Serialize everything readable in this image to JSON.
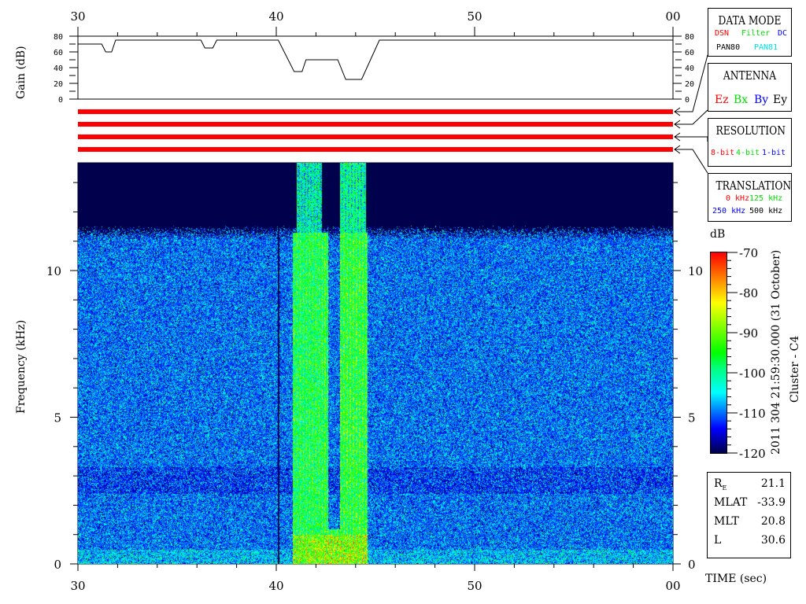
{
  "time_axis": {
    "ticks": [
      "30",
      "40",
      "50",
      "00"
    ],
    "tick_values": [
      30,
      40,
      50,
      60
    ],
    "label": "TIME (sec)"
  },
  "gain": {
    "ylabel": "Gain (dB)",
    "yticks": [
      "0",
      "20",
      "40",
      "60",
      "80"
    ],
    "x": [
      30,
      31.2,
      31.4,
      31.7,
      31.9,
      36.2,
      36.4,
      36.8,
      37.0,
      40.1,
      40.9,
      41.3,
      41.5,
      43.1,
      43.5,
      44.3,
      45.2,
      60
    ],
    "y": [
      70,
      70,
      60,
      60,
      75,
      75,
      65,
      65,
      75,
      75,
      35,
      35,
      50,
      50,
      25,
      25,
      75,
      75
    ]
  },
  "status_bar_color": "#ff0000",
  "panels": {
    "data_mode": {
      "title": "DATA MODE",
      "items": [
        {
          "t": "DSN",
          "c": "#ff0000"
        },
        {
          "t": "Filter",
          "c": "#00dd00"
        },
        {
          "t": "DC",
          "c": "#0000ff"
        },
        {
          "t": "PAN80",
          "c": "#000000"
        },
        {
          "t": "PAN81",
          "c": "#00e0e0"
        }
      ]
    },
    "antenna": {
      "title": "ANTENNA",
      "items": [
        {
          "t": "Ez",
          "c": "#ff0000"
        },
        {
          "t": "Bx",
          "c": "#00dd00"
        },
        {
          "t": "By",
          "c": "#0000ff"
        },
        {
          "t": "Ey",
          "c": "#000000"
        }
      ]
    },
    "resolution": {
      "title": "RESOLUTION",
      "items": [
        {
          "t": "8-bit",
          "c": "#ff0000"
        },
        {
          "t": "4-bit",
          "c": "#00dd00"
        },
        {
          "t": "1-bit",
          "c": "#0000ff"
        }
      ]
    },
    "translation": {
      "title": "TRANSLATION",
      "items": [
        {
          "t": "0 kHz",
          "c": "#ff0000"
        },
        {
          "t": "125 kHz",
          "c": "#00dd00"
        },
        {
          "t": "250 kHz",
          "c": "#0000ff"
        },
        {
          "t": "500 kHz",
          "c": "#000000"
        }
      ]
    }
  },
  "chart_data": {
    "type": "heatmap",
    "xlabel": "TIME (sec)",
    "ylabel": "Frequency (kHz)",
    "xlim": [
      30,
      60
    ],
    "ylim": [
      0,
      13.7
    ],
    "yticks": [
      "0",
      "5",
      "10"
    ],
    "colorbar": {
      "label": "dB",
      "range": [
        -120,
        -70
      ],
      "ticks": [
        "-70",
        "-80",
        "-90",
        "-100",
        "-110",
        "-120"
      ]
    },
    "noise_cutoff_khz": 11.3,
    "burst_interval_sec": [
      40.8,
      44.6
    ]
  },
  "header": {
    "date": "2011 304 21:59:30.000 (31 October)",
    "spacecraft": "Cluster - C4"
  },
  "ephemeris": [
    {
      "k": "R",
      "sub": "E",
      "v": "21.1"
    },
    {
      "k": "MLAT",
      "v": "-33.9"
    },
    {
      "k": "MLT",
      "v": "20.8"
    },
    {
      "k": "L",
      "v": "30.6"
    }
  ]
}
